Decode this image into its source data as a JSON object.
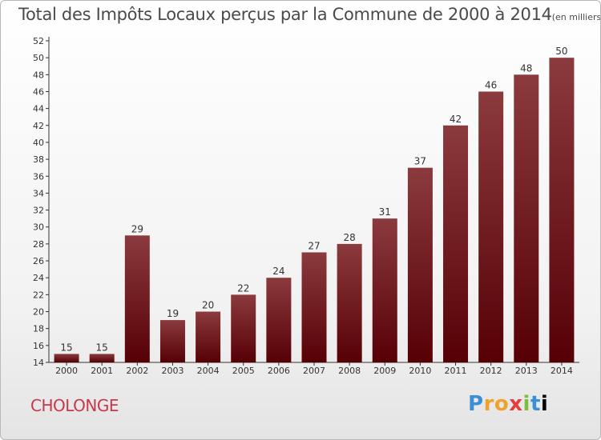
{
  "title": "Total des Impôts Locaux perçus par la Commune de 2000 à 2014",
  "unit_note": "(en milliers d'€)",
  "commune": "CHOLONGE",
  "logo": "Proxiti",
  "colors": {
    "bar_top": "#8b3a3e",
    "bar_bottom": "#560006",
    "axis": "#333333",
    "commune_text": "#c8374d"
  },
  "chart_data": {
    "type": "bar",
    "categories": [
      "2000",
      "2001",
      "2002",
      "2003",
      "2004",
      "2005",
      "2006",
      "2007",
      "2008",
      "2009",
      "2010",
      "2011",
      "2012",
      "2013",
      "2014"
    ],
    "values": [
      15,
      15,
      29,
      19,
      20,
      22,
      24,
      27,
      28,
      31,
      37,
      42,
      46,
      48,
      50
    ],
    "ylim": [
      14,
      52
    ],
    "yticks": [
      14,
      16,
      18,
      20,
      22,
      24,
      26,
      28,
      30,
      32,
      34,
      36,
      38,
      40,
      42,
      44,
      46,
      48,
      50,
      52
    ],
    "data_labels": true,
    "grid": false
  }
}
